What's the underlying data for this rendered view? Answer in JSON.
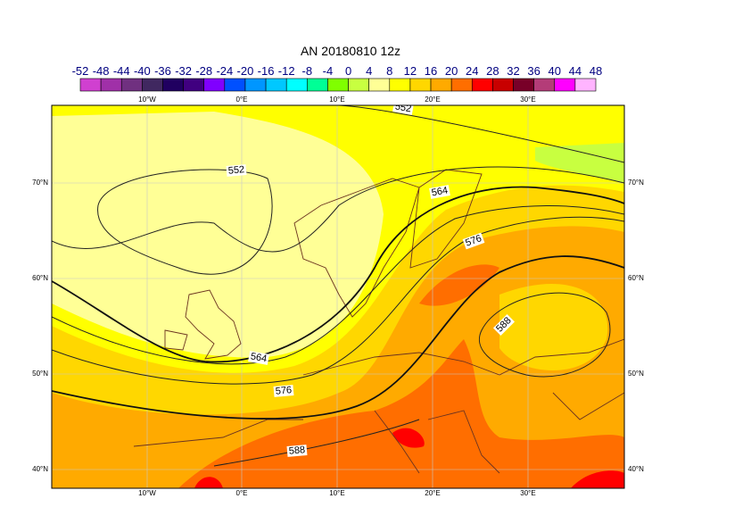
{
  "title": "AN  20180810 12z",
  "colorbar": {
    "labels": [
      -52,
      -48,
      -44,
      -40,
      -36,
      -32,
      -28,
      -24,
      -20,
      -16,
      -12,
      -8,
      -4,
      0,
      4,
      8,
      12,
      16,
      20,
      24,
      28,
      32,
      36,
      40,
      44,
      48
    ],
    "colors": [
      "#d040d0",
      "#a030a8",
      "#703080",
      "#402860",
      "#200060",
      "#400080",
      "#8000ff",
      "#0050ff",
      "#0096ff",
      "#00c8ff",
      "#00ffff",
      "#00ff96",
      "#80ff00",
      "#c8ff40",
      "#ffff96",
      "#ffff00",
      "#ffd700",
      "#ffaa00",
      "#ff6e00",
      "#ff0000",
      "#c80000",
      "#780028",
      "#b43c78",
      "#ff00ff",
      "#ffb4ff"
    ]
  },
  "map": {
    "lon_labels": [
      "10°W",
      "0°E",
      "10°E",
      "20°E",
      "30°E"
    ],
    "lat_labels": [
      "40°N",
      "50°N",
      "60°N",
      "70°N"
    ],
    "contour_labels": [
      552,
      552,
      564,
      564,
      576,
      576,
      588,
      588
    ]
  }
}
